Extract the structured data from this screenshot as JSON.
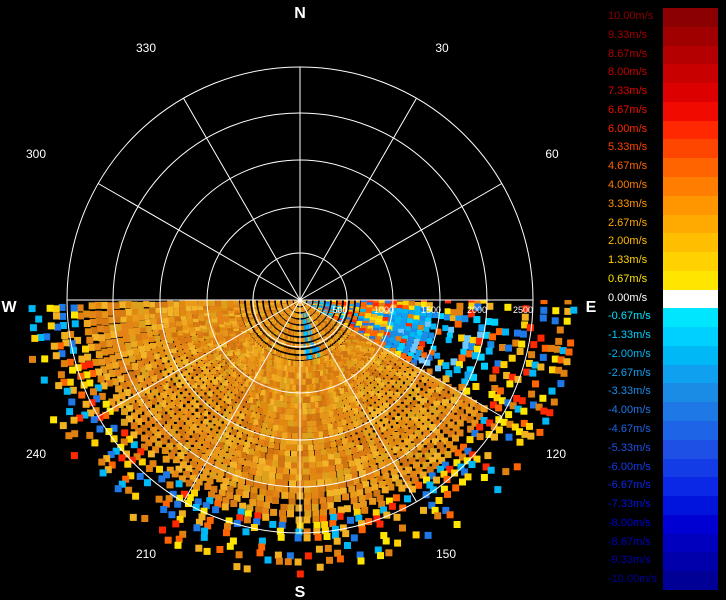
{
  "compass": {
    "north": "N",
    "south": "S",
    "east": "E",
    "west": "W"
  },
  "azimuth_labels": [
    "30",
    "60",
    "120",
    "150",
    "210",
    "240",
    "300",
    "330"
  ],
  "range_labels": [
    "500",
    "1000",
    "1500",
    "2000",
    "2500"
  ],
  "legend": [
    {
      "label": "10.00m/s",
      "color": "#8b0000"
    },
    {
      "label": "9.33m/s",
      "color": "#a00000"
    },
    {
      "label": "8.67m/s",
      "color": "#b40000"
    },
    {
      "label": "8.00m/s",
      "color": "#c80000"
    },
    {
      "label": "7.33m/s",
      "color": "#dc0000"
    },
    {
      "label": "6.67m/s",
      "color": "#f00a00"
    },
    {
      "label": "6.00m/s",
      "color": "#ff2800"
    },
    {
      "label": "5.33m/s",
      "color": "#ff4600"
    },
    {
      "label": "4.67m/s",
      "color": "#ff6400"
    },
    {
      "label": "4.00m/s",
      "color": "#ff7d00"
    },
    {
      "label": "3.33m/s",
      "color": "#ff9600"
    },
    {
      "label": "2.67m/s",
      "color": "#ffaa00"
    },
    {
      "label": "2.00m/s",
      "color": "#ffbe00"
    },
    {
      "label": "1.33m/s",
      "color": "#ffd200"
    },
    {
      "label": "0.67m/s",
      "color": "#ffe600"
    },
    {
      "label": "0.00m/s",
      "color": "#ffffff"
    },
    {
      "label": "-0.67m/s",
      "color": "#00e6ff"
    },
    {
      "label": "-1.33m/s",
      "color": "#00d0ff"
    },
    {
      "label": "-2.00m/s",
      "color": "#00b8f5"
    },
    {
      "label": "-2.67m/s",
      "color": "#10a0f0"
    },
    {
      "label": "-3.33m/s",
      "color": "#1a8ce6"
    },
    {
      "label": "-4.00m/s",
      "color": "#1e78e6"
    },
    {
      "label": "-4.67m/s",
      "color": "#1e64e6"
    },
    {
      "label": "-5.33m/s",
      "color": "#1e50e6"
    },
    {
      "label": "-6.00m/s",
      "color": "#143ce6"
    },
    {
      "label": "-6.67m/s",
      "color": "#0a28e6"
    },
    {
      "label": "-7.33m/s",
      "color": "#0014dc"
    },
    {
      "label": "-8.00m/s",
      "color": "#0000d2"
    },
    {
      "label": "-8.67m/s",
      "color": "#0000be"
    },
    {
      "label": "-9.33m/s",
      "color": "#0000aa"
    },
    {
      "label": "-10.00m/s",
      "color": "#000096"
    }
  ]
}
